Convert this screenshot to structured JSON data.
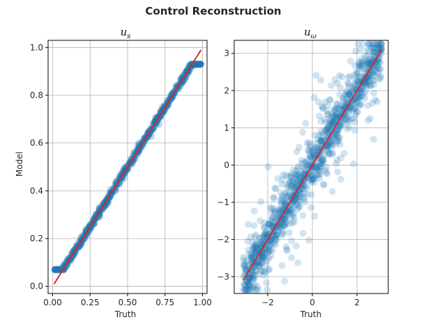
{
  "figure": {
    "suptitle": "Control Reconstruction"
  },
  "colors": {
    "scatter": "#1f77b4",
    "fit_line": "#d62728",
    "grid": "#b0b0b0"
  },
  "chart_data": [
    {
      "type": "scatter",
      "title": "u_s",
      "title_base": "u",
      "title_sub": "s",
      "xlabel": "Truth",
      "ylabel": "Model",
      "xlim": [
        -0.03,
        1.03
      ],
      "ylim": [
        -0.03,
        1.03
      ],
      "xticks": [
        0.0,
        0.25,
        0.5,
        0.75,
        1.0
      ],
      "xtick_labels": [
        "0.00",
        "0.25",
        "0.50",
        "0.75",
        "1.00"
      ],
      "yticks": [
        0.0,
        0.2,
        0.4,
        0.6,
        0.8,
        1.0
      ],
      "ytick_labels": [
        "0.0",
        "0.2",
        "0.4",
        "0.6",
        "0.8",
        "1.0"
      ],
      "grid": true,
      "series": [
        {
          "kind": "scatter",
          "x_range": [
            0.01,
            0.99
          ],
          "trend": {
            "slope": 1.0,
            "intercept": 0.0
          },
          "spread": 0.008,
          "opacity": 0.25
        },
        {
          "kind": "line",
          "x": [
            0.01,
            0.99
          ],
          "y": [
            0.01,
            0.99
          ]
        }
      ]
    },
    {
      "type": "scatter",
      "title": "u_ω",
      "title_base": "u",
      "title_sub": "ω",
      "xlabel": "Truth",
      "ylabel": "",
      "xlim": [
        -3.5,
        3.4
      ],
      "ylim": [
        -3.45,
        3.35
      ],
      "xticks": [
        -2,
        0,
        2
      ],
      "xtick_labels": [
        "−2",
        "0",
        "2"
      ],
      "yticks": [
        -3,
        -2,
        -1,
        0,
        1,
        2,
        3
      ],
      "ytick_labels": [
        "−3",
        "−2",
        "−1",
        "0",
        "1",
        "2",
        "3"
      ],
      "grid": true,
      "series": [
        {
          "kind": "scatter",
          "x_range": [
            -3.1,
            3.1
          ],
          "trend": {
            "slope": 1.0,
            "intercept": 0.0
          },
          "spread": 0.35,
          "opacity": 0.2
        },
        {
          "kind": "line",
          "x": [
            -3.1,
            3.1
          ],
          "y": [
            -3.1,
            3.1
          ]
        }
      ]
    }
  ]
}
